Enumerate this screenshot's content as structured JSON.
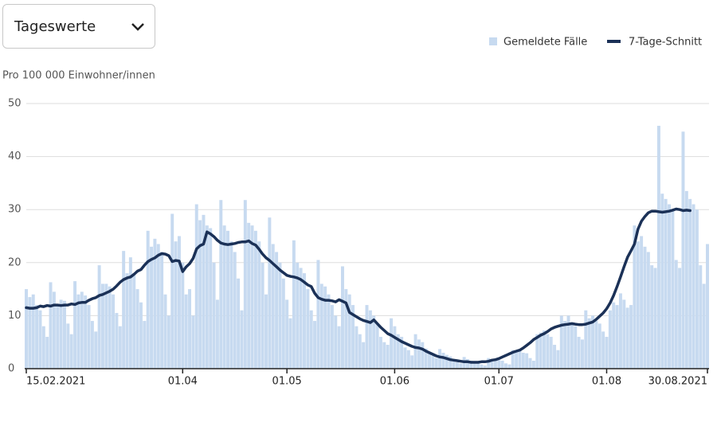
{
  "controls": {
    "dropdown": "Tageswerte"
  },
  "chart_data": {
    "type": "bar-line",
    "y_label": "Pro 100 000 Einwohner/innen",
    "categories": [
      "15.02.2021",
      null,
      null,
      null,
      null,
      null,
      null,
      null,
      null,
      null,
      null,
      null,
      null,
      null,
      null,
      null,
      null,
      null,
      null,
      null,
      null,
      null,
      null,
      null,
      null,
      null,
      null,
      null,
      null,
      null,
      null,
      null,
      null,
      null,
      null,
      null,
      null,
      null,
      null,
      null,
      null,
      null,
      null,
      null,
      null,
      "01.04",
      null,
      null,
      null,
      null,
      null,
      null,
      null,
      null,
      null,
      null,
      null,
      null,
      null,
      null,
      null,
      null,
      null,
      null,
      null,
      null,
      null,
      null,
      null,
      null,
      null,
      null,
      null,
      null,
      null,
      "01.05",
      null,
      null,
      null,
      null,
      null,
      null,
      null,
      null,
      null,
      null,
      null,
      null,
      null,
      null,
      null,
      null,
      null,
      null,
      null,
      null,
      null,
      null,
      null,
      null,
      null,
      null,
      null,
      null,
      null,
      null,
      "01.06",
      null,
      null,
      null,
      null,
      null,
      null,
      null,
      null,
      null,
      null,
      null,
      null,
      null,
      null,
      null,
      null,
      null,
      null,
      null,
      null,
      null,
      null,
      null,
      null,
      null,
      null,
      null,
      null,
      null,
      "01.07",
      null,
      null,
      null,
      null,
      null,
      null,
      null,
      null,
      null,
      null,
      null,
      null,
      null,
      null,
      null,
      null,
      null,
      null,
      null,
      null,
      null,
      null,
      null,
      null,
      null,
      null,
      null,
      null,
      null,
      null,
      "01.08",
      null,
      null,
      null,
      null,
      null,
      null,
      null,
      null,
      null,
      null,
      null,
      null,
      null,
      null,
      null,
      null,
      null,
      null,
      null,
      null,
      null,
      null,
      null,
      null,
      null,
      null,
      null,
      null,
      "30.08.2021"
    ],
    "series": [
      {
        "name": "Gemeldete Fälle",
        "color": "#c7daf0",
        "kind": "bar",
        "values": [
          15,
          13.5,
          14,
          12,
          11,
          8,
          6,
          16.3,
          14.5,
          12,
          13,
          12.8,
          8.5,
          6.5,
          16.5,
          14,
          14.5,
          13.8,
          12,
          9,
          7,
          19.5,
          16,
          16,
          15.5,
          14,
          10.5,
          8,
          22.2,
          18,
          21,
          18,
          15,
          12.5,
          9,
          26,
          23,
          24.5,
          23.5,
          22,
          14,
          10,
          29.2,
          24,
          25,
          20,
          14,
          15,
          10,
          31,
          28,
          29,
          27,
          26.5,
          20,
          13,
          31.8,
          27,
          26,
          24,
          22,
          17,
          11,
          31.8,
          27.5,
          27,
          26,
          24,
          20,
          14,
          28.5,
          23.5,
          22,
          20,
          17,
          13,
          9.5,
          24.2,
          20,
          19,
          18,
          15,
          11,
          9,
          20.5,
          16,
          15.5,
          14,
          12,
          10,
          8,
          19.3,
          15,
          14,
          12,
          8,
          6.5,
          5,
          12,
          11,
          10,
          8.5,
          6,
          5,
          4.5,
          9.5,
          8,
          6.5,
          6,
          4,
          3.5,
          2.5,
          6.5,
          5.5,
          5,
          3.8,
          3,
          2.5,
          2,
          3.7,
          3,
          2.6,
          2.3,
          1.8,
          1.2,
          1,
          2.2,
          1.8,
          1.5,
          1.3,
          1.1,
          0.8,
          0.6,
          2,
          1.8,
          1.7,
          1.6,
          1.5,
          1,
          0.8,
          3.5,
          3.2,
          3.4,
          3,
          2.9,
          2,
          1.5,
          6.5,
          6.8,
          7.2,
          6.5,
          6,
          4.5,
          3.5,
          10,
          9,
          10,
          8.5,
          8,
          6,
          5.5,
          11,
          9.5,
          10,
          9,
          8.5,
          7,
          6,
          11,
          12.5,
          12,
          14.2,
          13,
          11.5,
          12,
          27,
          24,
          25,
          23,
          22,
          19.5,
          19,
          45.8,
          33,
          32,
          31,
          30,
          20.5,
          19,
          44.7,
          33.5,
          32,
          31,
          30,
          19.5,
          16,
          23.5
        ]
      },
      {
        "name": "7-Tage-Schnitt",
        "color": "#1b3157",
        "kind": "line",
        "values": [
          11.5,
          11.4,
          11.4,
          11.5,
          11.8,
          11.7,
          11.9,
          11.8,
          12,
          12,
          11.9,
          12,
          12,
          12.2,
          12.1,
          12.4,
          12.5,
          12.5,
          12.9,
          13.2,
          13.4,
          13.8,
          14,
          14.3,
          14.6,
          15,
          15.6,
          16.3,
          16.8,
          17.1,
          17.3,
          17.8,
          18.4,
          18.7,
          19.5,
          20.2,
          20.6,
          20.9,
          21.4,
          21.7,
          21.6,
          21.3,
          20.2,
          20.4,
          20.3,
          18.3,
          19.2,
          19.8,
          20.8,
          22.6,
          23.2,
          23.5,
          25.8,
          25.4,
          24.9,
          24.2,
          23.7,
          23.5,
          23.4,
          23.5,
          23.6,
          23.8,
          23.9,
          23.9,
          24.1,
          23.6,
          23.3,
          22.5,
          21.6,
          20.9,
          20.4,
          19.8,
          19.2,
          18.6,
          18.1,
          17.6,
          17.4,
          17.3,
          17.1,
          16.8,
          16.3,
          15.8,
          15.5,
          14.2,
          13.4,
          13.1,
          12.9,
          12.9,
          12.8,
          12.6,
          13,
          12.7,
          12.4,
          10.6,
          10.2,
          9.8,
          9.4,
          9.1,
          8.9,
          8.7,
          9.2,
          8.5,
          7.8,
          7.2,
          6.6,
          6.3,
          5.9,
          5.5,
          5.1,
          4.8,
          4.5,
          4.2,
          4,
          3.9,
          3.7,
          3.3,
          3,
          2.7,
          2.4,
          2.2,
          2.1,
          1.9,
          1.7,
          1.6,
          1.5,
          1.4,
          1.3,
          1.3,
          1.2,
          1.2,
          1.2,
          1.3,
          1.3,
          1.4,
          1.6,
          1.7,
          1.9,
          2.2,
          2.5,
          2.8,
          3.1,
          3.3,
          3.5,
          3.9,
          4.4,
          4.9,
          5.5,
          5.9,
          6.3,
          6.6,
          7,
          7.5,
          7.8,
          8,
          8.2,
          8.3,
          8.4,
          8.5,
          8.4,
          8.3,
          8.3,
          8.4,
          8.6,
          8.8,
          9.3,
          9.9,
          10.5,
          11.3,
          12.4,
          13.8,
          15.5,
          17.3,
          19.2,
          21,
          22.2,
          23.5,
          26.3,
          27.8,
          28.7,
          29.4,
          29.7,
          29.7,
          29.6,
          29.5,
          29.6,
          29.7,
          29.9,
          30.1,
          30,
          29.8,
          29.9,
          29.8,
          null,
          null,
          null,
          null,
          null
        ]
      }
    ],
    "ylim": [
      0,
      50
    ],
    "yticks": [
      0,
      10,
      20,
      30,
      40,
      50
    ],
    "grid": true,
    "legend": "top-right"
  }
}
